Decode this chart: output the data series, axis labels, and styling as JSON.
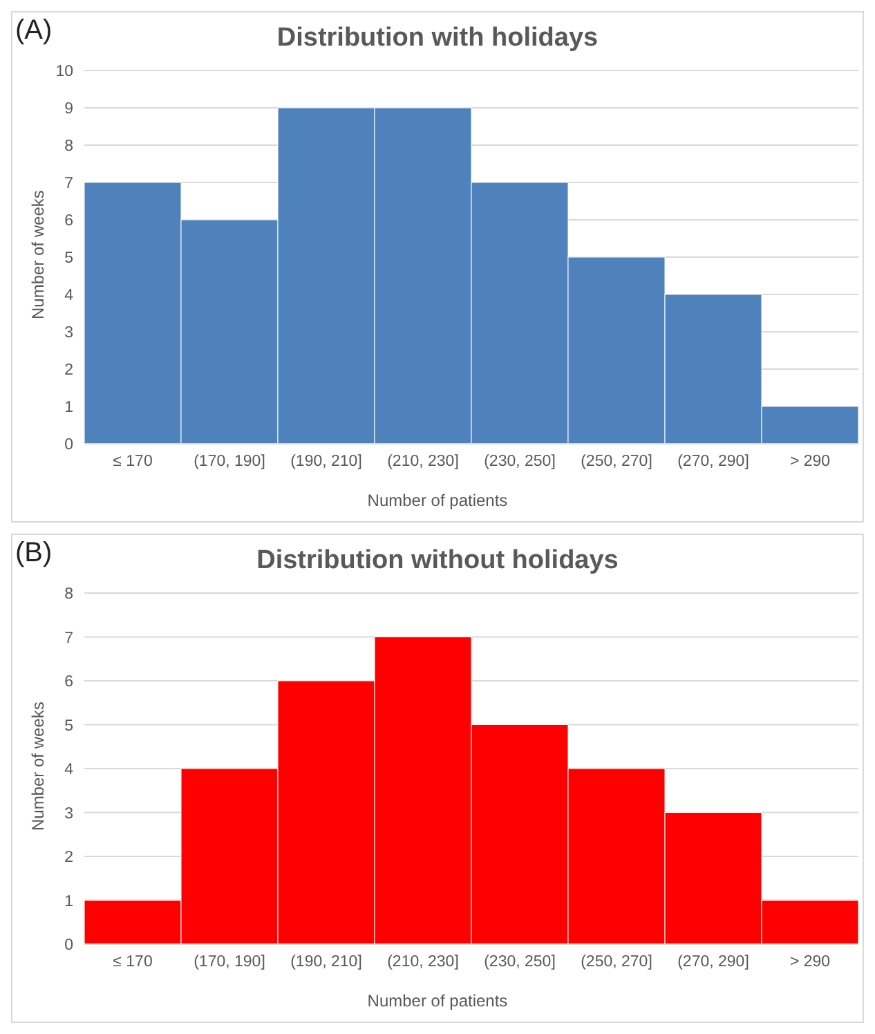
{
  "chart_data": [
    {
      "type": "bar",
      "title": "Distribution with holidays",
      "xlabel": "Number of patients",
      "ylabel": "Number of weeks",
      "annotations": [
        "(A)"
      ],
      "categories": [
        "≤ 170",
        "(170, 190]",
        "(190, 210]",
        "(210, 230]",
        "(230, 250]",
        "(250, 270]",
        "(270, 290]",
        "> 290"
      ],
      "values": [
        7,
        6,
        9,
        9,
        7,
        5,
        4,
        1
      ],
      "color": "#4f81bd",
      "ylim": [
        0,
        10
      ],
      "yticks": [
        0,
        1,
        2,
        3,
        4,
        5,
        6,
        7,
        8,
        9,
        10
      ],
      "grid": "y"
    },
    {
      "type": "bar",
      "title": "Distribution without holidays",
      "xlabel": "Number of patients",
      "ylabel": "Number of weeks",
      "annotations": [
        "(B)"
      ],
      "categories": [
        "≤ 170",
        "(170, 190]",
        "(190, 210]",
        "(210, 230]",
        "(230, 250]",
        "(250, 270]",
        "(270, 290]",
        "> 290"
      ],
      "values": [
        1,
        4,
        6,
        7,
        5,
        4,
        3,
        1
      ],
      "color": "#ff0000",
      "ylim": [
        0,
        8
      ],
      "yticks": [
        0,
        1,
        2,
        3,
        4,
        5,
        6,
        7,
        8
      ],
      "grid": "y"
    }
  ]
}
